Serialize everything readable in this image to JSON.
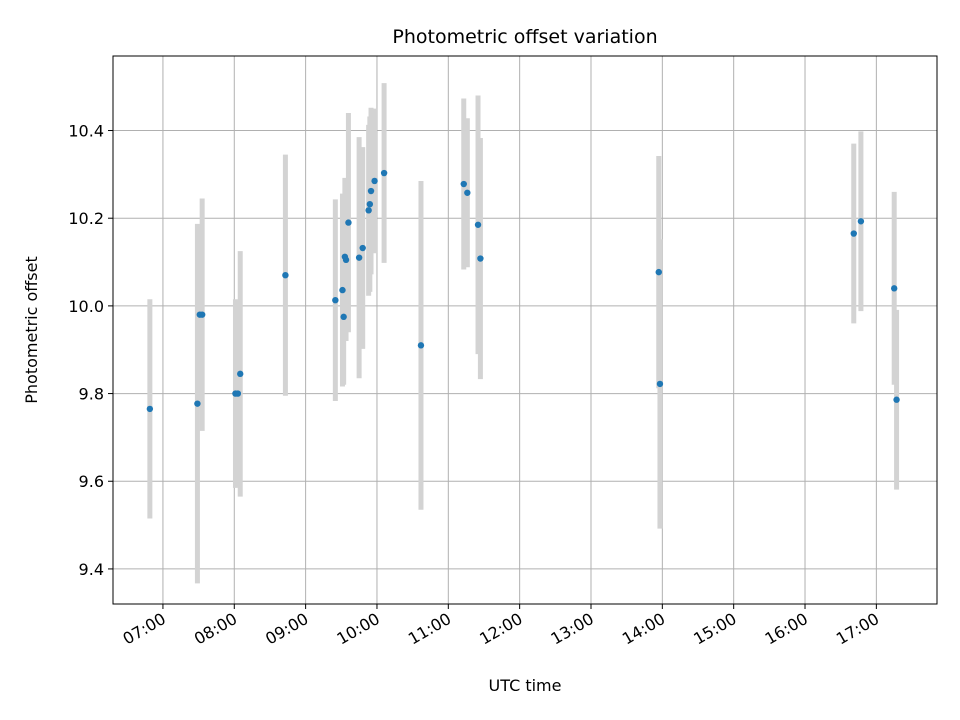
{
  "chart_data": {
    "type": "scatter",
    "title": "Photometric offset variation",
    "xlabel": "UTC time",
    "ylabel": "Photometric offset",
    "x_ticks": [
      "07:00",
      "08:00",
      "09:00",
      "10:00",
      "11:00",
      "12:00",
      "13:00",
      "14:00",
      "15:00",
      "16:00",
      "17:00"
    ],
    "y_ticks": [
      "9.4",
      "9.6",
      "9.8",
      "10.0",
      "10.2",
      "10.4"
    ],
    "xlim": [
      "06:18",
      "17:51"
    ],
    "ylim": [
      9.32,
      10.57
    ],
    "grid": true,
    "marker_color": "#1f77b4",
    "errorbar_color": "#d3d3d3",
    "series": [
      {
        "points": [
          {
            "x": "06:49",
            "y": 9.765,
            "err": 0.25
          },
          {
            "x": "07:29",
            "y": 9.777,
            "err": 0.41
          },
          {
            "x": "07:31",
            "y": 9.98,
            "err": 0.2
          },
          {
            "x": "07:33",
            "y": 9.98,
            "err": 0.265
          },
          {
            "x": "08:01",
            "y": 9.8,
            "err": 0.215
          },
          {
            "x": "08:03",
            "y": 9.8,
            "err": 0.21
          },
          {
            "x": "08:05",
            "y": 9.845,
            "err": 0.28
          },
          {
            "x": "08:43",
            "y": 10.07,
            "err": 0.275
          },
          {
            "x": "09:25",
            "y": 10.013,
            "err": 0.23
          },
          {
            "x": "09:31",
            "y": 10.036,
            "err": 0.22
          },
          {
            "x": "09:32",
            "y": 9.975,
            "err": 0.155
          },
          {
            "x": "09:33",
            "y": 10.112,
            "err": 0.18
          },
          {
            "x": "09:34",
            "y": 10.105,
            "err": 0.185
          },
          {
            "x": "09:36",
            "y": 10.19,
            "err": 0.25
          },
          {
            "x": "09:45",
            "y": 10.11,
            "err": 0.275
          },
          {
            "x": "09:48",
            "y": 10.132,
            "err": 0.23
          },
          {
            "x": "09:53",
            "y": 10.218,
            "err": 0.195
          },
          {
            "x": "09:54",
            "y": 10.232,
            "err": 0.2
          },
          {
            "x": "09:55",
            "y": 10.262,
            "err": 0.19
          },
          {
            "x": "09:58",
            "y": 10.285,
            "err": 0.165
          },
          {
            "x": "10:06",
            "y": 10.303,
            "err": 0.205
          },
          {
            "x": "10:37",
            "y": 9.91,
            "err": 0.375
          },
          {
            "x": "11:13",
            "y": 10.278,
            "err": 0.195
          },
          {
            "x": "11:16",
            "y": 10.258,
            "err": 0.17
          },
          {
            "x": "11:25",
            "y": 10.185,
            "err": 0.295
          },
          {
            "x": "11:27",
            "y": 10.108,
            "err": 0.275
          },
          {
            "x": "13:57",
            "y": 10.077,
            "err": 0.265
          },
          {
            "x": "13:58",
            "y": 9.822,
            "err": 0.33
          },
          {
            "x": "16:41",
            "y": 10.165,
            "err": 0.205
          },
          {
            "x": "16:47",
            "y": 10.193,
            "err": 0.205
          },
          {
            "x": "17:15",
            "y": 10.04,
            "err": 0.22
          },
          {
            "x": "17:17",
            "y": 9.786,
            "err": 0.205
          }
        ]
      }
    ]
  }
}
